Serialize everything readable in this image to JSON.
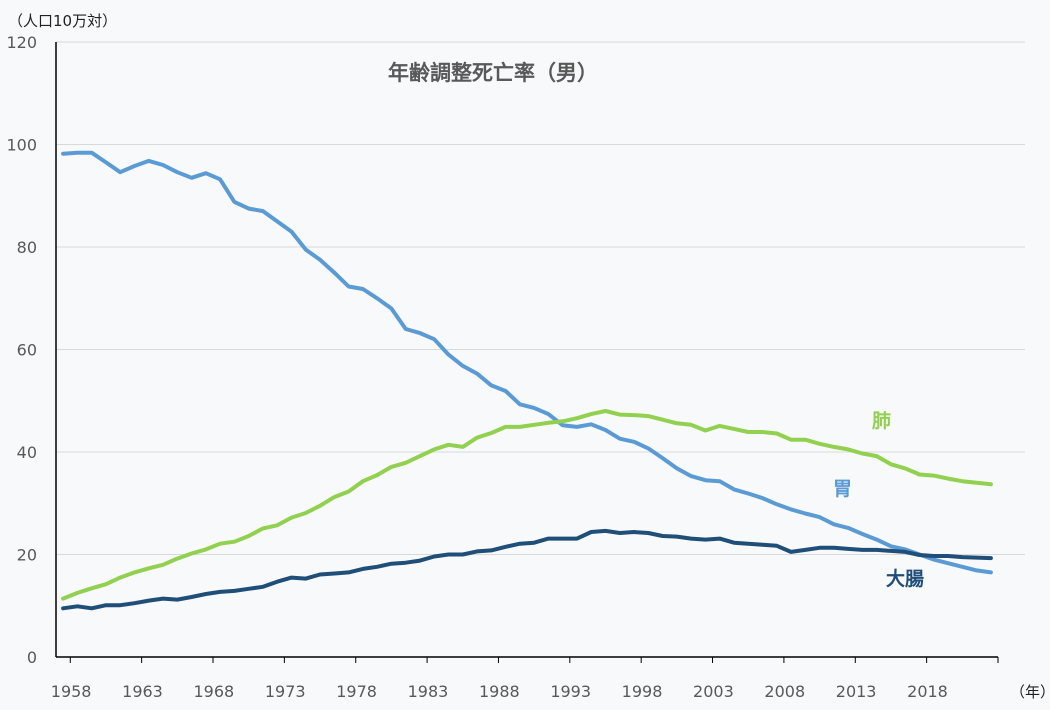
{
  "chart_data": {
    "type": "line",
    "title": "年齢調整死亡率（男）",
    "ylabel": "（人口10万対）",
    "xlabel": "（年）",
    "ylim": [
      0,
      120
    ],
    "yticks": [
      0,
      20,
      40,
      60,
      80,
      100,
      120
    ],
    "xticks": [
      "1958",
      "1963",
      "1968",
      "1973",
      "1978",
      "1983",
      "1988",
      "1993",
      "1998",
      "2003",
      "2008",
      "2013",
      "2018"
    ],
    "x_start": 1958,
    "x_end": 2023,
    "grid": true,
    "series": [
      {
        "name": "胃",
        "color": "#5b9bd5",
        "values": [
          98.2,
          98.4,
          98.4,
          96.5,
          94.6,
          95.8,
          96.8,
          96.0,
          94.6,
          93.5,
          94.4,
          93.2,
          88.8,
          87.5,
          87.0,
          85.0,
          83.0,
          79.5,
          77.5,
          75.0,
          72.3,
          71.8,
          70.0,
          68.0,
          64.0,
          63.2,
          62.0,
          59.0,
          56.8,
          55.3,
          53.0,
          51.9,
          49.3,
          48.6,
          47.4,
          45.2,
          44.9,
          45.4,
          44.3,
          42.6,
          42.0,
          40.7,
          38.8,
          36.8,
          35.3,
          34.5,
          34.3,
          32.7,
          31.9,
          31.0,
          29.8,
          28.8,
          28.0,
          27.3,
          25.9,
          25.2,
          24.0,
          22.9,
          21.6,
          21.0,
          20.0,
          19.0,
          18.3,
          17.6,
          16.9,
          16.5
        ]
      },
      {
        "name": "肺",
        "color": "#92d050",
        "values": [
          11.4,
          12.5,
          13.4,
          14.2,
          15.5,
          16.5,
          17.3,
          18.0,
          19.2,
          20.2,
          21.0,
          22.1,
          22.5,
          23.6,
          25.1,
          25.7,
          27.2,
          28.1,
          29.5,
          31.2,
          32.3,
          34.3,
          35.5,
          37.1,
          37.9,
          39.2,
          40.5,
          41.4,
          41.0,
          42.8,
          43.7,
          44.9,
          44.9,
          45.3,
          45.7,
          46.0,
          46.6,
          47.4,
          48.0,
          47.3,
          47.2,
          47.0,
          46.3,
          45.6,
          45.3,
          44.2,
          45.1,
          44.5,
          43.9,
          43.9,
          43.6,
          42.4,
          42.4,
          41.6,
          41.0,
          40.5,
          39.7,
          39.2,
          37.6,
          36.8,
          35.6,
          35.4,
          34.8,
          34.3,
          34.0,
          33.7
        ]
      },
      {
        "name": "大腸",
        "color": "#1f4e79",
        "values": [
          9.5,
          9.9,
          9.5,
          10.1,
          10.1,
          10.5,
          11.0,
          11.4,
          11.2,
          11.7,
          12.3,
          12.7,
          12.9,
          13.3,
          13.7,
          14.7,
          15.5,
          15.3,
          16.1,
          16.3,
          16.5,
          17.2,
          17.6,
          18.2,
          18.4,
          18.8,
          19.6,
          20.0,
          20.0,
          20.6,
          20.8,
          21.5,
          22.1,
          22.3,
          23.1,
          23.1,
          23.1,
          24.4,
          24.6,
          24.2,
          24.4,
          24.2,
          23.6,
          23.5,
          23.1,
          22.9,
          23.1,
          22.3,
          22.1,
          21.9,
          21.7,
          20.5,
          20.9,
          21.3,
          21.3,
          21.1,
          20.9,
          20.9,
          20.7,
          20.5,
          19.9,
          19.7,
          19.7,
          19.5,
          19.4,
          19.3
        ]
      }
    ]
  }
}
